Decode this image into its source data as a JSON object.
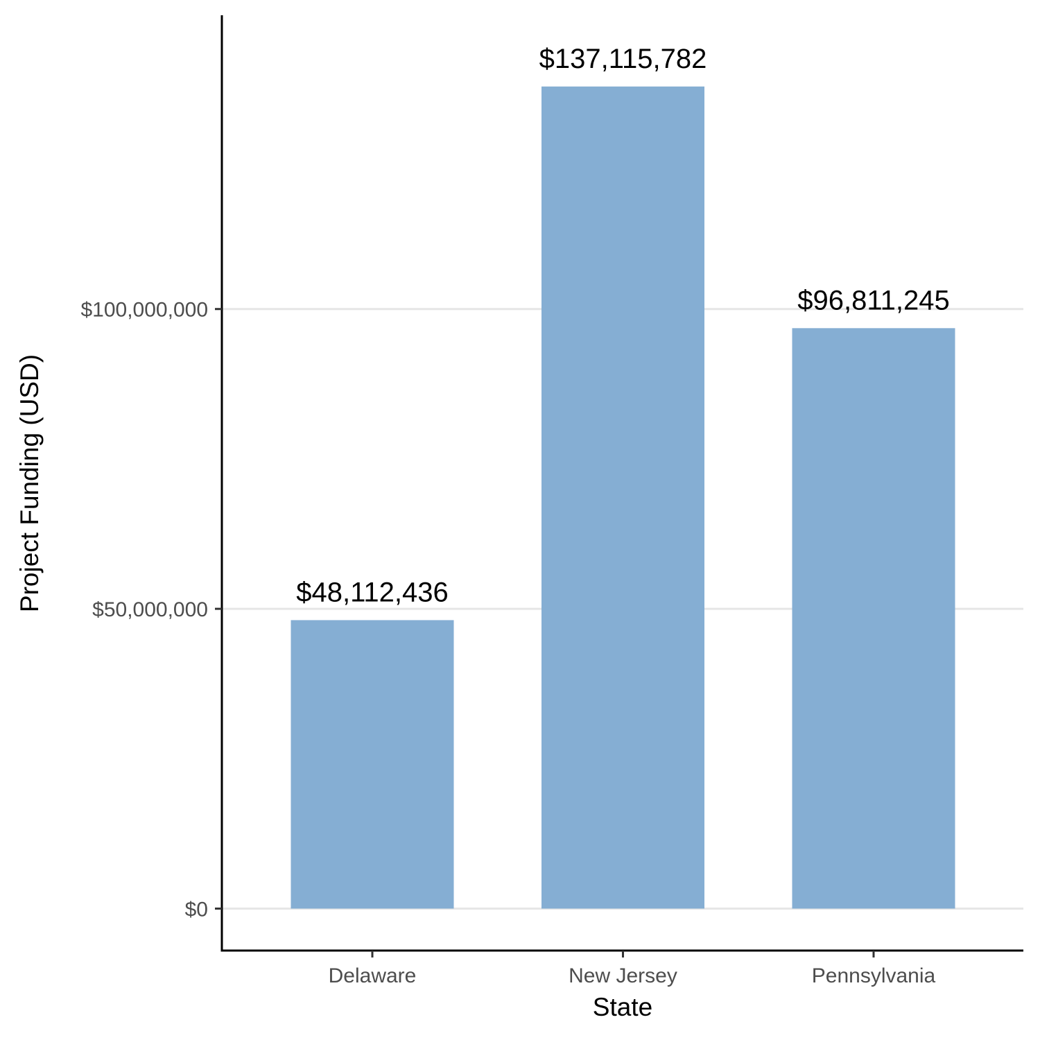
{
  "chart_data": {
    "type": "bar",
    "title": "",
    "xlabel": "State",
    "ylabel": "Project Funding (USD)",
    "categories": [
      "Delaware",
      "New Jersey",
      "Pennsylvania"
    ],
    "values": [
      48112436,
      137115782,
      96811245
    ],
    "data_labels": [
      "$48,112,436",
      "$137,115,782",
      "$96,811,245"
    ],
    "yticks": [
      0,
      50000000,
      100000000
    ],
    "ytick_labels": [
      "$0",
      "$50,000,000",
      "$100,000,000"
    ],
    "ylim": [
      -7000000,
      149000000
    ],
    "grid": "horizontal-major",
    "bar_color": "#85aed3",
    "legend": "none"
  }
}
